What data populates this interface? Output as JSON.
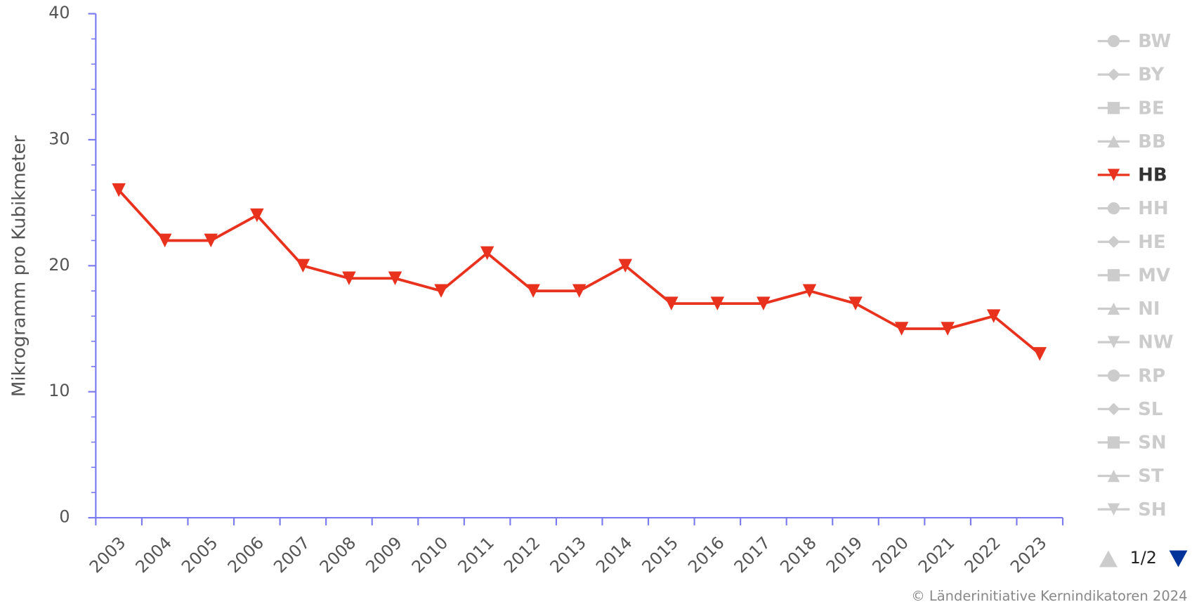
{
  "chart_data": {
    "type": "line",
    "y_label": "Mikrogramm pro Kubikmeter",
    "categories": [
      "2003",
      "2004",
      "2005",
      "2006",
      "2007",
      "2008",
      "2009",
      "2010",
      "2011",
      "2012",
      "2013",
      "2014",
      "2015",
      "2016",
      "2017",
      "2018",
      "2019",
      "2020",
      "2021",
      "2022",
      "2023"
    ],
    "series": [
      {
        "name": "BW",
        "marker": "circle",
        "visible": false
      },
      {
        "name": "BY",
        "marker": "diamond",
        "visible": false
      },
      {
        "name": "BE",
        "marker": "square",
        "visible": false
      },
      {
        "name": "BB",
        "marker": "triangle",
        "visible": false
      },
      {
        "name": "HB",
        "marker": "triangle-down",
        "visible": true,
        "color": "#e8321e",
        "values": [
          26,
          22,
          22,
          24,
          20,
          19,
          19,
          18,
          21,
          18,
          18,
          20,
          17,
          17,
          17,
          18,
          17,
          15,
          15,
          16,
          13
        ]
      },
      {
        "name": "HH",
        "marker": "circle",
        "visible": false
      },
      {
        "name": "HE",
        "marker": "diamond",
        "visible": false
      },
      {
        "name": "MV",
        "marker": "square",
        "visible": false
      },
      {
        "name": "NI",
        "marker": "triangle",
        "visible": false
      },
      {
        "name": "NW",
        "marker": "triangle-down",
        "visible": false
      },
      {
        "name": "RP",
        "marker": "circle",
        "visible": false
      },
      {
        "name": "SL",
        "marker": "diamond",
        "visible": false
      },
      {
        "name": "SN",
        "marker": "square",
        "visible": false
      },
      {
        "name": "ST",
        "marker": "triangle",
        "visible": false
      },
      {
        "name": "SH",
        "marker": "triangle-down",
        "visible": false
      }
    ],
    "ylim": [
      0,
      40
    ],
    "yticks": [
      0,
      10,
      20,
      30,
      40
    ],
    "y_minor_ticks": [
      2,
      4,
      6,
      8,
      12,
      14,
      16,
      18,
      22,
      24,
      26,
      28,
      32,
      34,
      36,
      38
    ],
    "axis_color": "#7b7bef",
    "hidden_color": "#cccccc",
    "legend_position": "right",
    "legend_page": "1/2",
    "credits": "© Länderinitiative Kernindikatoren 2024"
  }
}
